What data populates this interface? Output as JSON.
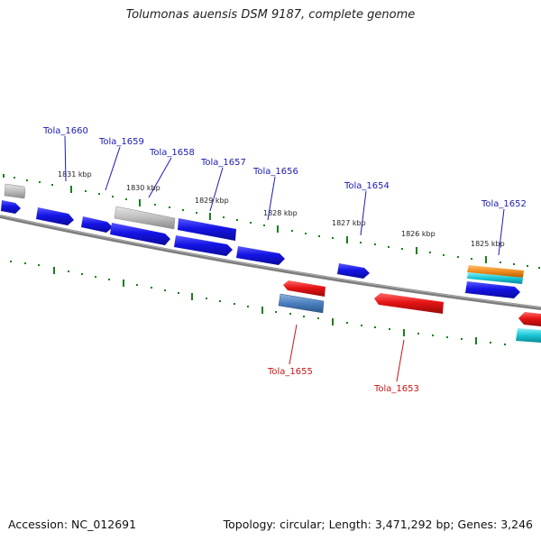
{
  "title": "Tolumonas auensis DSM 9187, complete genome",
  "footer": {
    "accession": "Accession: NC_012691",
    "summary": "Topology: circular; Length: 3,471,292 bp; Genes: 3,246"
  },
  "colors": {
    "backbone": "#8a8a8a",
    "tick": "#1a7f1a",
    "forward_gene": "#1414e6",
    "reverse_gene": "#e61414",
    "pseudo_gene": "#bdbdbd",
    "rna_gene": "#4a7fbf",
    "orange_gene": "#f08c1e",
    "cyan_gene": "#18c6d6",
    "forward_label": "#1a1ab4",
    "reverse_label": "#c81414"
  },
  "scale": {
    "tick_labels": [
      "1831 kbp",
      "1830 kbp",
      "1829 kbp",
      "1828 kbp",
      "1827 kbp",
      "1826 kbp",
      "1825 kbp"
    ]
  },
  "genes": [
    {
      "label": "Tola_1660",
      "strand": "forward"
    },
    {
      "label": "Tola_1659",
      "strand": "forward"
    },
    {
      "label": "Tola_1658",
      "strand": "forward"
    },
    {
      "label": "Tola_1657",
      "strand": "forward"
    },
    {
      "label": "Tola_1656",
      "strand": "forward"
    },
    {
      "label": "Tola_1654",
      "strand": "forward"
    },
    {
      "label": "Tola_1652",
      "strand": "forward"
    },
    {
      "label": "Tola_1655",
      "strand": "reverse"
    },
    {
      "label": "Tola_1653",
      "strand": "reverse"
    }
  ]
}
